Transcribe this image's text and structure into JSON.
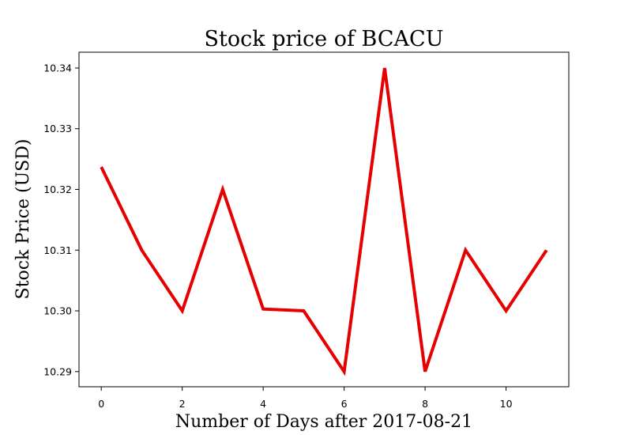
{
  "chart_data": {
    "type": "line",
    "title": "Stock price of BCACU",
    "xlabel": "Number of Days after 2017-08-21",
    "ylabel": "Stock Price (USD)",
    "x": [
      0,
      1,
      2,
      3,
      4,
      5,
      6,
      7,
      8,
      9,
      10,
      11
    ],
    "series": [
      {
        "name": "",
        "color": "#e60000",
        "values": [
          10.3237,
          10.31,
          10.3,
          10.32,
          10.3003,
          10.3,
          10.29,
          10.34,
          10.29,
          10.31,
          10.3,
          10.31
        ]
      }
    ],
    "xlim": [
      -0.55,
      11.55
    ],
    "ylim": [
      10.2875,
      10.3426
    ],
    "xticks": [
      0,
      2,
      4,
      6,
      8,
      10
    ],
    "xtick_labels": [
      "0",
      "2",
      "4",
      "6",
      "8",
      "10"
    ],
    "yticks": [
      10.29,
      10.3,
      10.31,
      10.32,
      10.33,
      10.34
    ],
    "ytick_labels": [
      "10.29",
      "10.30",
      "10.31",
      "10.32",
      "10.33",
      "10.34"
    ],
    "grid": false,
    "legend": "none"
  }
}
